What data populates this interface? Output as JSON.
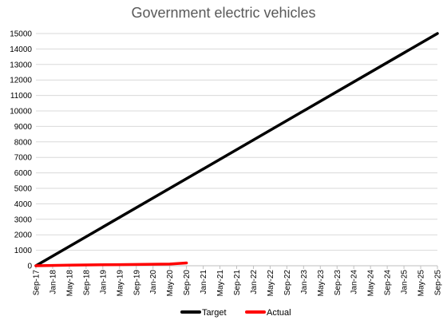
{
  "chart_data": {
    "type": "line",
    "title": "Government electric vehicles",
    "xlabel": "",
    "ylabel": "",
    "ylim": [
      0,
      15000
    ],
    "yticks": [
      0,
      1000,
      2000,
      3000,
      4000,
      5000,
      6000,
      7000,
      8000,
      9000,
      10000,
      11000,
      12000,
      13000,
      14000,
      15000
    ],
    "xticks": [
      "Sep-17",
      "Jan-18",
      "May-18",
      "Sep-18",
      "Jan-19",
      "May-19",
      "Sep-19",
      "Jan-20",
      "May-20",
      "Sep-20",
      "Jan-21",
      "May-21",
      "Sep-21",
      "Jan-22",
      "May-22",
      "Sep-22",
      "Jan-23",
      "May-23",
      "Sep-23",
      "Jan-24",
      "May-24",
      "Sep-24",
      "Jan-25",
      "May-25",
      "Sep-25"
    ],
    "grid": "horizontal",
    "legend_position": "bottom",
    "series": [
      {
        "name": "Target",
        "color": "#000000",
        "x": [
          "Sep-17",
          "Sep-25"
        ],
        "values": [
          0,
          15000
        ]
      },
      {
        "name": "Actual",
        "color": "#ff0000",
        "x": [
          "Sep-17",
          "Jan-18",
          "May-18",
          "Sep-18",
          "Jan-19",
          "May-19",
          "Sep-19",
          "Jan-20",
          "May-20",
          "Sep-20"
        ],
        "values": [
          0,
          20,
          40,
          50,
          60,
          70,
          80,
          100,
          110,
          180
        ]
      }
    ]
  }
}
